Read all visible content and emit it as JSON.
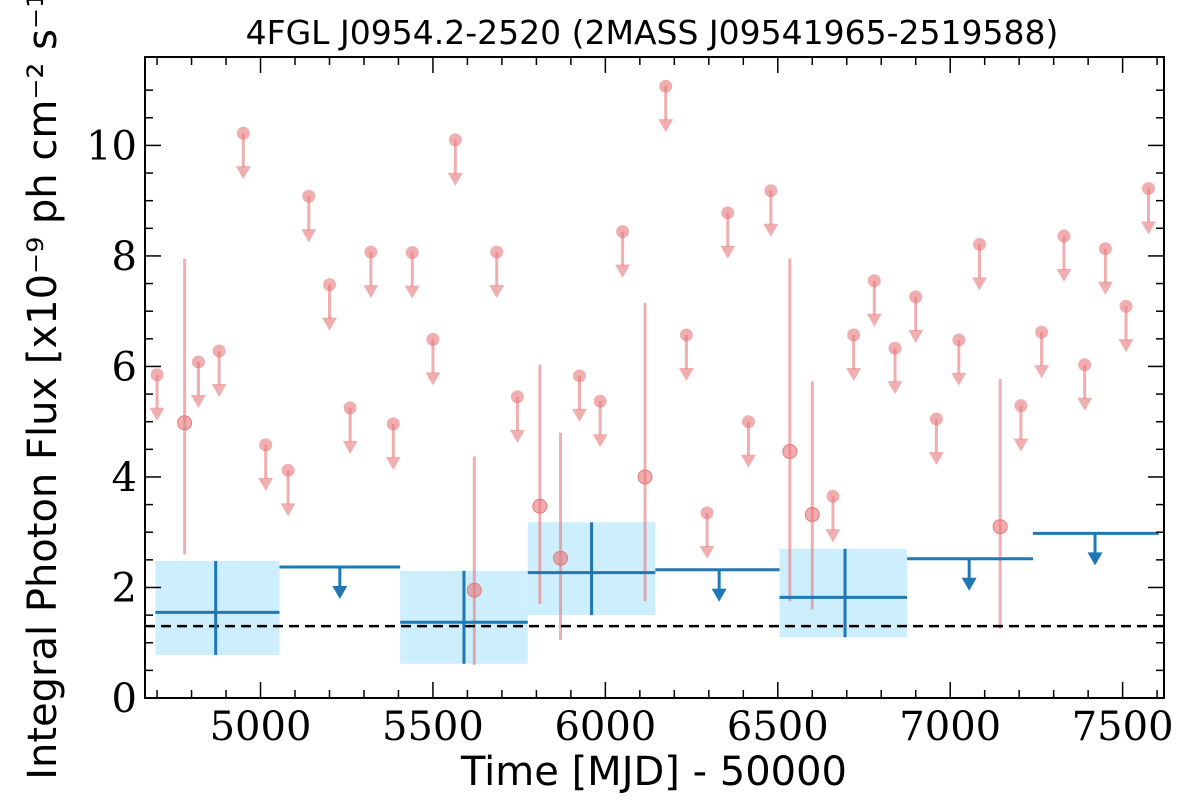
{
  "chart_data": {
    "type": "scatter",
    "title": "4FGL J0954.2-2520 (2MASS J09541965-2519588)",
    "xlabel": "Time [MJD] - 50000",
    "ylabel": "Integral Photon Flux [x10⁻⁹ ph cm⁻² s⁻¹]",
    "xlim": [
      4665,
      7620
    ],
    "ylim": [
      0,
      11.6
    ],
    "xticks": [
      5000,
      5500,
      6000,
      6500,
      7000,
      7500
    ],
    "xtick_labels": [
      "5000",
      "5500",
      "6000",
      "6500",
      "7000",
      "7500"
    ],
    "yticks": [
      0,
      2,
      4,
      6,
      8,
      10
    ],
    "ytick_labels": [
      "0",
      "2",
      "4",
      "6",
      "8",
      "10"
    ],
    "grid": false,
    "colors": {
      "short_bins": "#e8787c",
      "long_bins": "#1f77b4",
      "long_bins_band": "#cdeefc",
      "mean": "#000000"
    },
    "short_bin_upper_limits": [
      {
        "x": 4700,
        "y": 5.85
      },
      {
        "x": 4820,
        "y": 6.08
      },
      {
        "x": 4880,
        "y": 6.28
      },
      {
        "x": 4950,
        "y": 10.22
      },
      {
        "x": 5015,
        "y": 4.58
      },
      {
        "x": 5080,
        "y": 4.12
      },
      {
        "x": 5140,
        "y": 9.08
      },
      {
        "x": 5200,
        "y": 7.48
      },
      {
        "x": 5260,
        "y": 5.25
      },
      {
        "x": 5320,
        "y": 8.07
      },
      {
        "x": 5385,
        "y": 4.96
      },
      {
        "x": 5440,
        "y": 8.06
      },
      {
        "x": 5500,
        "y": 6.49
      },
      {
        "x": 5565,
        "y": 10.1
      },
      {
        "x": 5685,
        "y": 8.07
      },
      {
        "x": 5745,
        "y": 5.45
      },
      {
        "x": 5925,
        "y": 5.83
      },
      {
        "x": 5985,
        "y": 5.37
      },
      {
        "x": 6050,
        "y": 8.44
      },
      {
        "x": 6175,
        "y": 11.07
      },
      {
        "x": 6235,
        "y": 6.57
      },
      {
        "x": 6295,
        "y": 3.35
      },
      {
        "x": 6355,
        "y": 8.78
      },
      {
        "x": 6415,
        "y": 5.0
      },
      {
        "x": 6480,
        "y": 9.18
      },
      {
        "x": 6660,
        "y": 3.65
      },
      {
        "x": 6720,
        "y": 6.57
      },
      {
        "x": 6780,
        "y": 7.55
      },
      {
        "x": 6840,
        "y": 6.33
      },
      {
        "x": 6900,
        "y": 7.26
      },
      {
        "x": 6960,
        "y": 5.05
      },
      {
        "x": 7025,
        "y": 6.48
      },
      {
        "x": 7085,
        "y": 8.21
      },
      {
        "x": 7205,
        "y": 5.29
      },
      {
        "x": 7265,
        "y": 6.62
      },
      {
        "x": 7330,
        "y": 8.36
      },
      {
        "x": 7390,
        "y": 6.03
      },
      {
        "x": 7450,
        "y": 8.13
      },
      {
        "x": 7510,
        "y": 7.09
      },
      {
        "x": 7575,
        "y": 9.22
      }
    ],
    "short_bin_detections": [
      {
        "x": 4780,
        "y": 4.98,
        "y_low": 2.6,
        "y_high": 7.95
      },
      {
        "x": 5620,
        "y": 1.95,
        "y_low": 0.6,
        "y_high": 4.37
      },
      {
        "x": 5810,
        "y": 3.47,
        "y_low": 1.7,
        "y_high": 6.03
      },
      {
        "x": 5870,
        "y": 2.53,
        "y_low": 1.05,
        "y_high": 4.8
      },
      {
        "x": 6115,
        "y": 4.0,
        "y_low": 1.75,
        "y_high": 7.15
      },
      {
        "x": 6535,
        "y": 4.46,
        "y_low": 1.75,
        "y_high": 7.95
      },
      {
        "x": 6600,
        "y": 3.32,
        "y_low": 1.6,
        "y_high": 5.73
      },
      {
        "x": 7145,
        "y": 3.1,
        "y_low": 1.25,
        "y_high": 5.77
      }
    ],
    "long_bin_detections": [
      {
        "x": 4870,
        "x_low": 4695,
        "x_high": 5055,
        "y": 1.55,
        "y_low": 0.78,
        "y_high": 2.48
      },
      {
        "x": 5590,
        "x_low": 5405,
        "x_high": 5775,
        "y": 1.37,
        "y_low": 0.62,
        "y_high": 2.3
      },
      {
        "x": 5960,
        "x_low": 5775,
        "x_high": 6145,
        "y": 2.27,
        "y_low": 1.5,
        "y_high": 3.18
      },
      {
        "x": 6695,
        "x_low": 6505,
        "x_high": 6875,
        "y": 1.82,
        "y_low": 1.1,
        "y_high": 2.7
      }
    ],
    "long_bin_upper_limits": [
      {
        "x": 5230,
        "x_low": 5055,
        "x_high": 5405,
        "y": 2.37
      },
      {
        "x": 6330,
        "x_low": 6145,
        "x_high": 6505,
        "y": 2.32
      },
      {
        "x": 7055,
        "x_low": 6875,
        "x_high": 7240,
        "y": 2.52
      },
      {
        "x": 7420,
        "x_low": 7240,
        "x_high": 7605,
        "y": 2.98
      }
    ],
    "mean_flux": 1.3
  }
}
